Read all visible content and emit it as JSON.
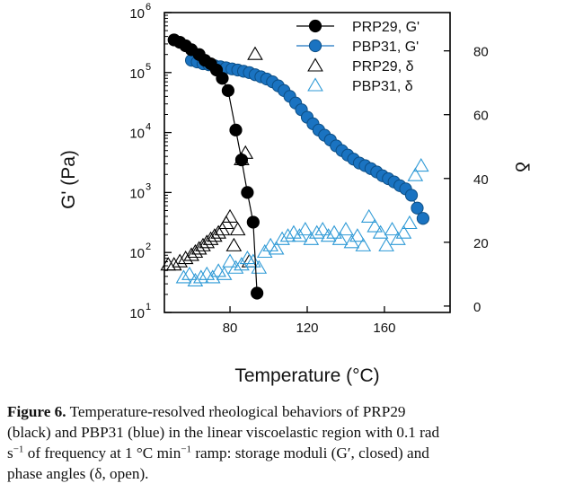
{
  "chart_data": {
    "type": "scatter",
    "title": "",
    "xlabel": "Temperature (°C)",
    "ylabel_left": "G' (Pa)",
    "ylabel_right": "δ",
    "xlim": [
      46,
      194
    ],
    "ylim_left": [
      10,
      1000000
    ],
    "yscale_left": "log",
    "ylim_right": [
      -2,
      92
    ],
    "x_ticks": [
      80,
      120,
      160
    ],
    "y_left_ticks": [
      {
        "value": 10,
        "base": "10",
        "exp": "1"
      },
      {
        "value": 100,
        "base": "10",
        "exp": "2"
      },
      {
        "value": 1000,
        "base": "10",
        "exp": "3"
      },
      {
        "value": 10000,
        "base": "10",
        "exp": "4"
      },
      {
        "value": 100000,
        "base": "10",
        "exp": "5"
      },
      {
        "value": 1000000,
        "base": "10",
        "exp": "6"
      }
    ],
    "y_right_ticks": [
      0,
      20,
      40,
      60,
      80
    ],
    "legend_position": "top-right",
    "series": [
      {
        "name": "PRP29, G'",
        "axis": "left",
        "marker": "circle-filled",
        "color": "#000000",
        "line": true,
        "x": [
          51,
          54,
          57,
          60,
          64,
          67,
          70,
          73,
          76,
          79,
          83,
          86,
          89,
          92,
          94
        ],
        "y": [
          350000,
          320000,
          280000,
          240000,
          200000,
          160000,
          140000,
          110000,
          80000,
          50000,
          11000,
          3500,
          1000,
          320,
          21
        ]
      },
      {
        "name": "PBP31, G'",
        "axis": "left",
        "marker": "circle-filled",
        "color": "#1a73c1",
        "line": true,
        "x": [
          60,
          63,
          66,
          69,
          72,
          75,
          78,
          81,
          84,
          87,
          90,
          93,
          96,
          99,
          102,
          105,
          108,
          111,
          114,
          117,
          120,
          123,
          126,
          129,
          132,
          135,
          138,
          141,
          144,
          147,
          150,
          153,
          156,
          159,
          162,
          165,
          168,
          171,
          174,
          177,
          180
        ],
        "y": [
          160000,
          150000,
          140000,
          135000,
          130000,
          125000,
          120000,
          115000,
          110000,
          105000,
          100000,
          92000,
          85000,
          78000,
          70000,
          60000,
          50000,
          40000,
          31000,
          24000,
          18000,
          14000,
          11000,
          9000,
          7500,
          6000,
          5000,
          4200,
          3600,
          3100,
          2800,
          2500,
          2200,
          1900,
          1700,
          1500,
          1300,
          1150,
          900,
          550,
          370
        ]
      },
      {
        "name": "PRP29, δ",
        "axis": "right",
        "marker": "triangle-open",
        "color": "#000000",
        "line": false,
        "x": [
          48,
          51,
          54,
          57,
          60,
          62,
          64,
          66,
          68,
          70,
          72,
          74,
          76,
          78,
          80,
          82,
          84,
          86,
          88,
          90,
          93
        ],
        "y": [
          13,
          13,
          14,
          15,
          16,
          17,
          18,
          19,
          20,
          21,
          22,
          23,
          24,
          26,
          28,
          19,
          24,
          46,
          48,
          14,
          79
        ]
      },
      {
        "name": "PBP31, δ",
        "axis": "right",
        "marker": "triangle-open",
        "color": "#2f9ad6",
        "line": false,
        "x": [
          56,
          59,
          62,
          65,
          68,
          71,
          74,
          77,
          80,
          83,
          86,
          89,
          92,
          95,
          98,
          101,
          104,
          107,
          110,
          113,
          116,
          119,
          122,
          125,
          128,
          131,
          134,
          137,
          140,
          143,
          146,
          149,
          152,
          155,
          158,
          161,
          164,
          167,
          170,
          173,
          176,
          179
        ],
        "y": [
          9,
          10,
          8,
          9,
          10,
          9,
          11,
          10,
          14,
          12,
          13,
          15,
          14,
          12,
          17,
          19,
          18,
          21,
          22,
          23,
          22,
          24,
          21,
          23,
          24,
          22,
          23,
          21,
          24,
          20,
          22,
          19,
          28,
          25,
          23,
          19,
          24,
          21,
          23,
          26,
          41,
          44
        ]
      }
    ]
  },
  "caption": {
    "label": "Figure 6.",
    "line1": "Temperature-resolved rheological behaviors of PRP29",
    "line2": "(black) and PBP31 (blue) in the linear viscoelastic region with 0.1 rad",
    "line3_a": "s",
    "line3_sup1": "−1",
    "line3_b": " of frequency at 1 °C min",
    "line3_sup2": "−1",
    "line3_c": " ramp: storage moduli (G′, closed) and",
    "line4": "phase angles (δ, open)."
  }
}
